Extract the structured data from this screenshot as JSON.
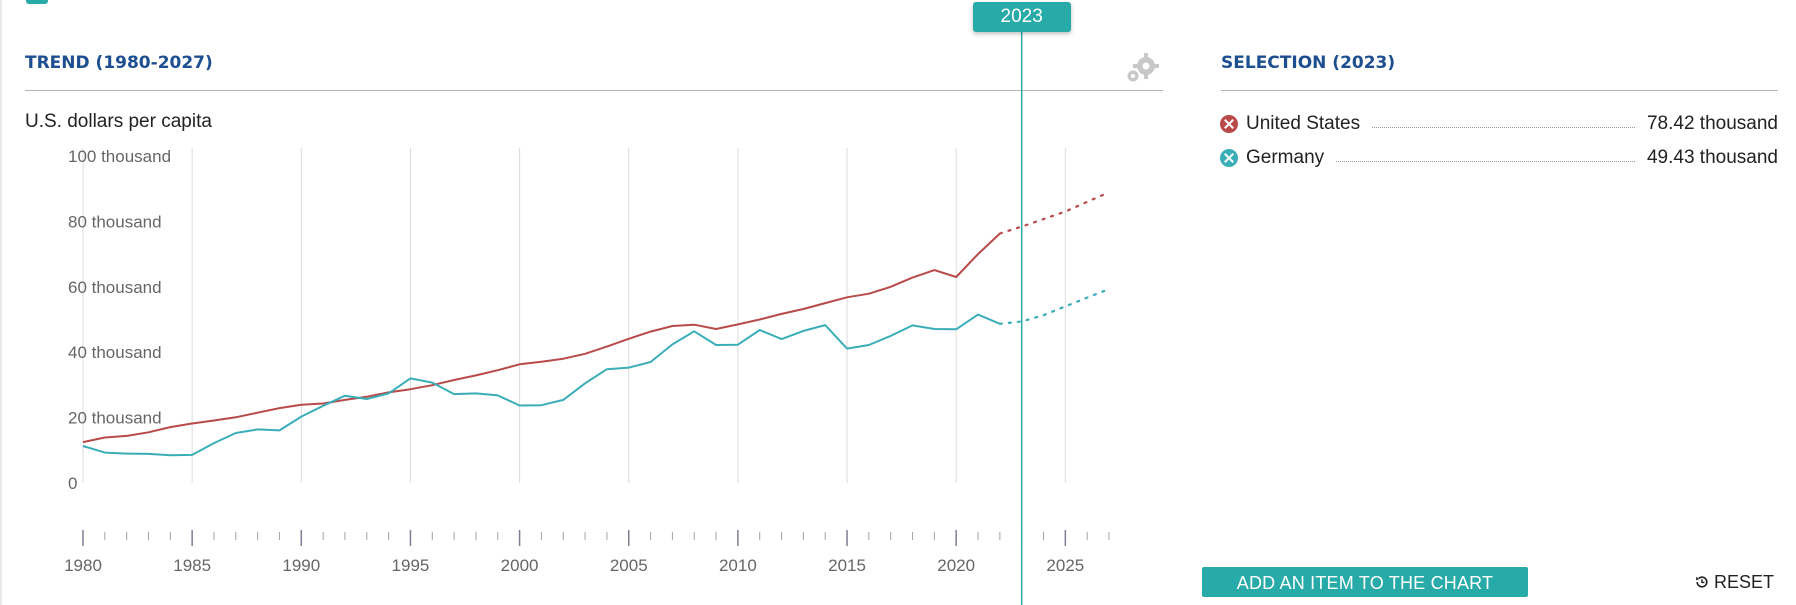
{
  "trend_panel": {
    "title": "TREND (1980-2027)",
    "unit_label": "U.S. dollars per capita"
  },
  "selection_panel": {
    "title": "SELECTION (2023)",
    "items": [
      {
        "name": "United States",
        "value": "78.42 thousand",
        "color": "#b94a4a"
      },
      {
        "name": "Germany",
        "value": "49.43 thousand",
        "color": "#3aaeb8"
      }
    ]
  },
  "selected_year_badge": "2023",
  "buttons": {
    "add_item": "ADD AN ITEM TO THE CHART",
    "reset": "RESET"
  },
  "icons": {
    "settings": "gears-icon",
    "reset": "reset-icon"
  },
  "colors": {
    "accent": "#27aaa8",
    "title": "#1d4e8f",
    "us": "#b94a4a",
    "germany": "#3aaeb8"
  },
  "chart_data": {
    "type": "line",
    "ylim": [
      0,
      100000
    ],
    "xlim": [
      1980,
      2027
    ],
    "y_ticks": [
      {
        "value": 0,
        "label": "0"
      },
      {
        "value": 20000,
        "label": "20 thousand"
      },
      {
        "value": 40000,
        "label": "40 thousand"
      },
      {
        "value": 60000,
        "label": "60 thousand"
      },
      {
        "value": 80000,
        "label": "80 thousand"
      },
      {
        "value": 100000,
        "label": "100 thousand"
      }
    ],
    "x_ticks": [
      "1980",
      "1985",
      "1990",
      "1995",
      "2000",
      "2005",
      "2010",
      "2015",
      "2020",
      "2025"
    ],
    "selected_year": 2023,
    "projection_start": 2022,
    "grid": "vertical",
    "series": [
      {
        "name": "United States",
        "color": "#b94a4a",
        "x": [
          1980,
          1981,
          1982,
          1983,
          1984,
          1985,
          1986,
          1987,
          1988,
          1989,
          1990,
          1991,
          1992,
          1993,
          1994,
          1995,
          1996,
          1997,
          1998,
          1999,
          2000,
          2001,
          2002,
          2003,
          2004,
          2005,
          2006,
          2007,
          2008,
          2009,
          2010,
          2011,
          2012,
          2013,
          2014,
          2015,
          2016,
          2017,
          2018,
          2019,
          2020,
          2021,
          2022,
          2023,
          2024,
          2025,
          2026,
          2027
        ],
        "y": [
          12500,
          13900,
          14400,
          15500,
          17100,
          18200,
          19100,
          20100,
          21500,
          22900,
          23900,
          24300,
          25400,
          26400,
          27700,
          28700,
          29900,
          31500,
          32900,
          34500,
          36300,
          37100,
          38000,
          39500,
          41700,
          44100,
          46300,
          48000,
          48400,
          47100,
          48500,
          50000,
          51700,
          53200,
          55000,
          56800,
          57900,
          60000,
          62800,
          65100,
          63000,
          70000,
          76300,
          78400,
          80700,
          83000,
          86000,
          88900
        ]
      },
      {
        "name": "Germany",
        "color": "#3aaeb8",
        "x": [
          1980,
          1981,
          1982,
          1983,
          1984,
          1985,
          1986,
          1987,
          1988,
          1989,
          1990,
          1991,
          1992,
          1993,
          1994,
          1995,
          1996,
          1997,
          1998,
          1999,
          2000,
          2001,
          2002,
          2003,
          2004,
          2005,
          2006,
          2007,
          2008,
          2009,
          2010,
          2011,
          2012,
          2013,
          2014,
          2015,
          2016,
          2017,
          2018,
          2019,
          2020,
          2021,
          2022,
          2023,
          2024,
          2025,
          2026,
          2027
        ],
        "y": [
          11300,
          9300,
          9000,
          8900,
          8500,
          8600,
          12200,
          15300,
          16400,
          16100,
          20300,
          23600,
          26700,
          25700,
          27400,
          32000,
          30700,
          27200,
          27400,
          26800,
          23700,
          23800,
          25400,
          30500,
          34800,
          35300,
          37000,
          42400,
          46400,
          42200,
          42300,
          46800,
          44000,
          46500,
          48300,
          41100,
          42200,
          45000,
          48200,
          47100,
          47000,
          51500,
          48700,
          49400,
          51300,
          54000,
          56700,
          59300
        ]
      }
    ]
  }
}
